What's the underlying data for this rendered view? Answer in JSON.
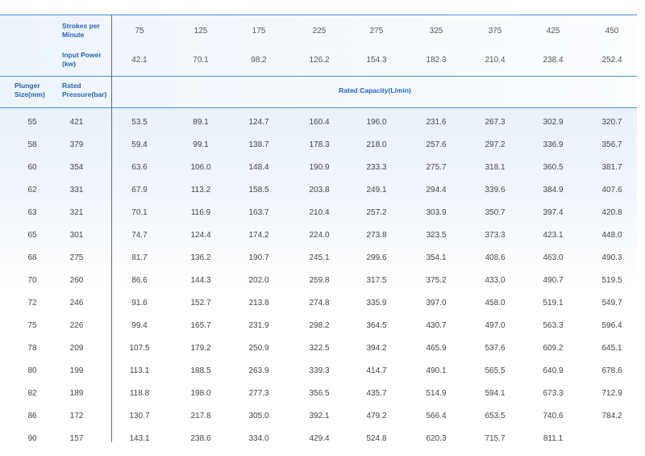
{
  "header": {
    "strokes_label": "Strokes per Minute",
    "power_label": "Input Power (kw)",
    "plunger_label": "Plunger Size(mm)",
    "pressure_label": "Rated Pressure(bar)",
    "capacity_label": "Rated Capacity(L/min)",
    "strokes": [
      "75",
      "125",
      "175",
      "225",
      "275",
      "325",
      "375",
      "425",
      "450"
    ],
    "powers": [
      "42.1",
      "70.1",
      "98.2",
      "126.2",
      "154.3",
      "182.3",
      "210.4",
      "238.4",
      "252.4"
    ]
  },
  "rows": [
    {
      "size": "55",
      "pressure": "421",
      "caps": [
        "53.5",
        "89.1",
        "124.7",
        "160.4",
        "196.0",
        "231.6",
        "267.3",
        "302.9",
        "320.7"
      ]
    },
    {
      "size": "58",
      "pressure": "379",
      "caps": [
        "59.4",
        "99.1",
        "138.7",
        "178.3",
        "218.0",
        "257.6",
        "297.2",
        "336.9",
        "356.7"
      ]
    },
    {
      "size": "60",
      "pressure": "354",
      "caps": [
        "63.6",
        "106.0",
        "148.4",
        "190.9",
        "233.3",
        "275.7",
        "318.1",
        "360.5",
        "381.7"
      ]
    },
    {
      "size": "62",
      "pressure": "331",
      "caps": [
        "67.9",
        "113.2",
        "158.5",
        "203.8",
        "249.1",
        "294.4",
        "339.6",
        "384.9",
        "407.6"
      ]
    },
    {
      "size": "63",
      "pressure": "321",
      "caps": [
        "70.1",
        "116.9",
        "163.7",
        "210.4",
        "257.2",
        "303.9",
        "350.7",
        "397.4",
        "420.8"
      ]
    },
    {
      "size": "65",
      "pressure": "301",
      "caps": [
        "74.7",
        "124.4",
        "174.2",
        "224.0",
        "273.8",
        "323.5",
        "373.3",
        "423.1",
        "448.0"
      ]
    },
    {
      "size": "68",
      "pressure": "275",
      "caps": [
        "81.7",
        "136.2",
        "190.7",
        "245.1",
        "299.6",
        "354.1",
        "408.6",
        "463.0",
        "490.3"
      ]
    },
    {
      "size": "70",
      "pressure": "260",
      "caps": [
        "86.6",
        "144.3",
        "202.0",
        "259.8",
        "317.5",
        "375.2",
        "433.0",
        "490.7",
        "519.5"
      ]
    },
    {
      "size": "72",
      "pressure": "246",
      "caps": [
        "91.6",
        "152.7",
        "213.8",
        "274.8",
        "335.9",
        "397.0",
        "458.0",
        "519.1",
        "549.7"
      ]
    },
    {
      "size": "75",
      "pressure": "226",
      "caps": [
        "99.4",
        "165.7",
        "231.9",
        "298.2",
        "364.5",
        "430.7",
        "497.0",
        "563.3",
        "596.4"
      ]
    },
    {
      "size": "78",
      "pressure": "209",
      "caps": [
        "107.5",
        "179.2",
        "250.9",
        "322.5",
        "394.2",
        "465.9",
        "537.6",
        "609.2",
        "645.1"
      ]
    },
    {
      "size": "80",
      "pressure": "199",
      "caps": [
        "113.1",
        "188.5",
        "263.9",
        "339.3",
        "414.7",
        "490.1",
        "565.5",
        "640.9",
        "678.6"
      ]
    },
    {
      "size": "82",
      "pressure": "189",
      "caps": [
        "118.8",
        "198.0",
        "277.3",
        "356.5",
        "435.7",
        "514.9",
        "594.1",
        "673.3",
        "712.9"
      ]
    },
    {
      "size": "86",
      "pressure": "172",
      "caps": [
        "130.7",
        "217.8",
        "305.0",
        "392.1",
        "479.2",
        "566.4",
        "653.5",
        "740.6",
        "784.2"
      ]
    },
    {
      "size": "90",
      "pressure": "157",
      "caps": [
        "143.1",
        "238.6",
        "334.0",
        "429.4",
        "524.8",
        "620.3",
        "715.7",
        "811.1",
        ""
      ]
    }
  ]
}
